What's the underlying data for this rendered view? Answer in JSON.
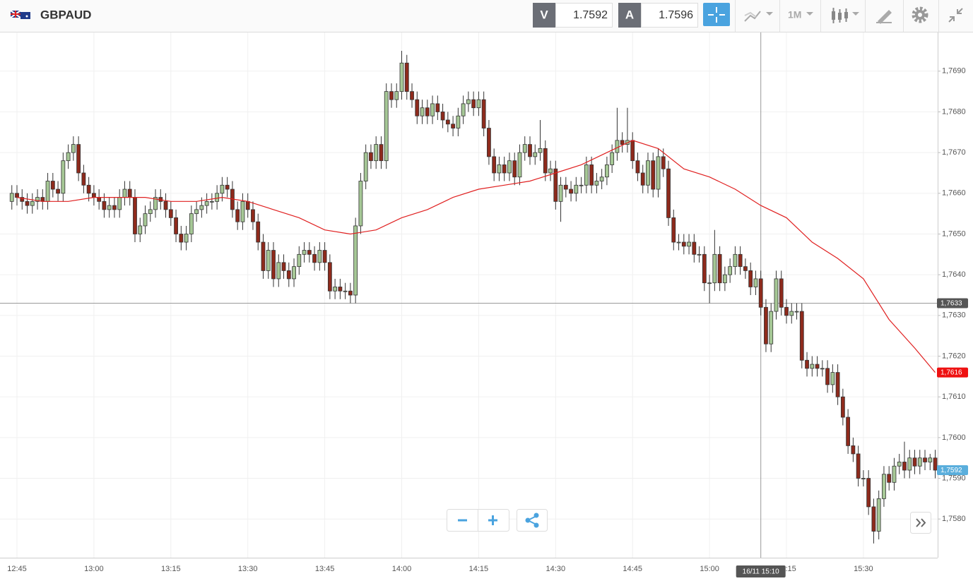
{
  "toolbar": {
    "symbol": "GBPAUD",
    "bid_label": "V",
    "bid": 1.7592,
    "ask_label": "A",
    "ask": 1.7596,
    "timeframe": "1M"
  },
  "chart_data": {
    "type": "candlestick",
    "x": [
      "12:44",
      "12:45",
      "12:46",
      "12:47",
      "12:48",
      "12:49",
      "12:50",
      "12:51",
      "12:52",
      "12:53",
      "12:54",
      "12:55",
      "12:56",
      "12:57",
      "12:58",
      "12:59",
      "13:00",
      "13:01",
      "13:02",
      "13:03",
      "13:04",
      "13:05",
      "13:06",
      "13:07",
      "13:08",
      "13:09",
      "13:10",
      "13:11",
      "13:12",
      "13:13",
      "13:14",
      "13:15",
      "13:16",
      "13:17",
      "13:18",
      "13:19",
      "13:20",
      "13:21",
      "13:22",
      "13:23",
      "13:24",
      "13:25",
      "13:26",
      "13:27",
      "13:28",
      "13:29",
      "13:30",
      "13:31",
      "13:32",
      "13:33",
      "13:34",
      "13:35",
      "13:36",
      "13:37",
      "13:38",
      "13:39",
      "13:40",
      "13:41",
      "13:42",
      "13:43",
      "13:44",
      "13:45",
      "13:46",
      "13:47",
      "13:48",
      "13:49",
      "13:50",
      "13:51",
      "13:52",
      "13:53",
      "13:54",
      "13:55",
      "13:56",
      "13:57",
      "13:58",
      "13:59",
      "14:00",
      "14:01",
      "14:02",
      "14:03",
      "14:04",
      "14:05",
      "14:06",
      "14:07",
      "14:08",
      "14:09",
      "14:10",
      "14:11",
      "14:12",
      "14:13",
      "14:14",
      "14:15",
      "14:16",
      "14:17",
      "14:18",
      "14:19",
      "14:20",
      "14:21",
      "14:22",
      "14:23",
      "14:24",
      "14:25",
      "14:26",
      "14:27",
      "14:28",
      "14:29",
      "14:30",
      "14:31",
      "14:32",
      "14:33",
      "14:34",
      "14:35",
      "14:36",
      "14:37",
      "14:38",
      "14:39",
      "14:40",
      "14:41",
      "14:42",
      "14:43",
      "14:44",
      "14:45",
      "14:46",
      "14:47",
      "14:48",
      "14:49",
      "14:50",
      "14:51",
      "14:52",
      "14:53",
      "14:54",
      "14:55",
      "14:56",
      "14:57",
      "14:58",
      "14:59",
      "15:00",
      "15:01",
      "15:02",
      "15:03",
      "15:04",
      "15:05",
      "15:06",
      "15:07",
      "15:08",
      "15:09",
      "15:10",
      "15:11",
      "15:12",
      "15:13",
      "15:14",
      "15:15",
      "15:16",
      "15:17",
      "15:18",
      "15:19",
      "15:20",
      "15:21",
      "15:22",
      "15:23",
      "15:24",
      "15:25",
      "15:26",
      "15:27",
      "15:28",
      "15:29",
      "15:30",
      "15:31",
      "15:32",
      "15:33",
      "15:34",
      "15:35",
      "15:36",
      "15:37",
      "15:38",
      "15:39",
      "15:40",
      "15:41",
      "15:42",
      "15:43",
      "15:44"
    ],
    "open": [
      1.7658,
      1.766,
      1.7659,
      1.7658,
      1.7657,
      1.7658,
      1.7659,
      1.7658,
      1.7663,
      1.7661,
      1.766,
      1.7668,
      1.767,
      1.7672,
      1.7665,
      1.7662,
      1.766,
      1.7659,
      1.7658,
      1.7656,
      1.7657,
      1.7656,
      1.7659,
      1.7661,
      1.7659,
      1.765,
      1.7652,
      1.7655,
      1.7656,
      1.7659,
      1.7658,
      1.7656,
      1.7654,
      1.765,
      1.7648,
      1.765,
      1.7655,
      1.7656,
      1.7657,
      1.7658,
      1.7658,
      1.766,
      1.7662,
      1.7661,
      1.7656,
      1.7653,
      1.7658,
      1.7656,
      1.7653,
      1.7648,
      1.7641,
      1.7646,
      1.7639,
      1.7643,
      1.7641,
      1.7639,
      1.7642,
      1.7645,
      1.7646,
      1.7645,
      1.7643,
      1.7646,
      1.7643,
      1.7636,
      1.7637,
      1.7636,
      1.7636,
      1.7635,
      1.7652,
      1.7663,
      1.767,
      1.7668,
      1.7672,
      1.7668,
      1.7685,
      1.7683,
      1.7685,
      1.7692,
      1.7685,
      1.7683,
      1.7679,
      1.7681,
      1.7679,
      1.7682,
      1.768,
      1.7678,
      1.7677,
      1.7676,
      1.7679,
      1.7682,
      1.7683,
      1.7681,
      1.7683,
      1.7676,
      1.7669,
      1.7665,
      1.7667,
      1.7665,
      1.7668,
      1.7664,
      1.767,
      1.7672,
      1.7669,
      1.767,
      1.7671,
      1.7665,
      1.7666,
      1.7658,
      1.7662,
      1.7661,
      1.766,
      1.7662,
      1.7662,
      1.7667,
      1.7662,
      1.7663,
      1.7664,
      1.7667,
      1.767,
      1.7673,
      1.7672,
      1.7673,
      1.7668,
      1.7665,
      1.7662,
      1.7668,
      1.7661,
      1.7669,
      1.7666,
      1.7654,
      1.7648,
      1.7648,
      1.7647,
      1.7648,
      1.7645,
      1.7645,
      1.7638,
      1.7638,
      1.7645,
      1.7638,
      1.764,
      1.7642,
      1.7645,
      1.7642,
      1.7641,
      1.7637,
      1.7639,
      1.7632,
      1.7623,
      1.7631,
      1.7639,
      1.7632,
      1.763,
      1.7631,
      1.7631,
      1.7619,
      1.7617,
      1.7618,
      1.7617,
      1.7617,
      1.7613,
      1.7616,
      1.761,
      1.7605,
      1.7598,
      1.7596,
      1.759,
      1.759,
      1.7583,
      1.7577,
      1.7585,
      1.7591,
      1.7589,
      1.7593,
      1.7594,
      1.7592,
      1.7595,
      1.7593,
      1.7595,
      1.7594,
      1.7595
    ],
    "high": [
      1.7662,
      1.7662,
      1.7661,
      1.766,
      1.766,
      1.7661,
      1.7661,
      1.7665,
      1.7665,
      1.7663,
      1.767,
      1.7672,
      1.7674,
      1.7674,
      1.7667,
      1.7664,
      1.7662,
      1.7661,
      1.766,
      1.7659,
      1.7659,
      1.7661,
      1.7663,
      1.7663,
      1.7661,
      1.7654,
      1.7657,
      1.7658,
      1.7661,
      1.7661,
      1.766,
      1.7658,
      1.7656,
      1.7652,
      1.7652,
      1.7657,
      1.7658,
      1.7659,
      1.766,
      1.766,
      1.7662,
      1.7664,
      1.7664,
      1.7663,
      1.7658,
      1.766,
      1.766,
      1.7658,
      1.7655,
      1.765,
      1.7648,
      1.7648,
      1.7645,
      1.7645,
      1.7643,
      1.7644,
      1.7647,
      1.7648,
      1.7648,
      1.7647,
      1.7648,
      1.7648,
      1.7645,
      1.7639,
      1.7639,
      1.7638,
      1.7638,
      1.7654,
      1.7665,
      1.7672,
      1.7672,
      1.7674,
      1.7674,
      1.7687,
      1.7687,
      1.7687,
      1.7695,
      1.7694,
      1.7687,
      1.7685,
      1.7683,
      1.7683,
      1.7684,
      1.7684,
      1.7682,
      1.768,
      1.7679,
      1.7681,
      1.7684,
      1.7685,
      1.7685,
      1.7685,
      1.7685,
      1.7678,
      1.7671,
      1.7669,
      1.7669,
      1.767,
      1.767,
      1.7672,
      1.7674,
      1.7674,
      1.7672,
      1.7678,
      1.7673,
      1.7668,
      1.7668,
      1.7664,
      1.7664,
      1.7663,
      1.7664,
      1.7664,
      1.7669,
      1.7669,
      1.7665,
      1.7666,
      1.7669,
      1.7672,
      1.7681,
      1.7675,
      1.7681,
      1.7675,
      1.767,
      1.7667,
      1.767,
      1.767,
      1.7671,
      1.7671,
      1.7668,
      1.7656,
      1.765,
      1.765,
      1.765,
      1.765,
      1.7647,
      1.7647,
      1.764,
      1.7651,
      1.7647,
      1.7642,
      1.7644,
      1.7647,
      1.7647,
      1.7644,
      1.7643,
      1.7641,
      1.7641,
      1.7634,
      1.7633,
      1.7641,
      1.7641,
      1.7634,
      1.7633,
      1.7633,
      1.7633,
      1.7621,
      1.762,
      1.762,
      1.7619,
      1.7619,
      1.7618,
      1.7618,
      1.7612,
      1.7607,
      1.76,
      1.7598,
      1.7592,
      1.7592,
      1.7585,
      1.7587,
      1.7593,
      1.7593,
      1.7595,
      1.7596,
      1.7599,
      1.7597,
      1.7597,
      1.7597,
      1.7597,
      1.7596,
      1.7597
    ],
    "low": [
      1.7656,
      1.7657,
      1.7656,
      1.7655,
      1.7655,
      1.7656,
      1.7656,
      1.7656,
      1.7659,
      1.7658,
      1.7658,
      1.7666,
      1.7668,
      1.7663,
      1.766,
      1.7658,
      1.7657,
      1.7656,
      1.7654,
      1.7654,
      1.7654,
      1.7654,
      1.7657,
      1.7657,
      1.7648,
      1.7648,
      1.765,
      1.7653,
      1.7654,
      1.7656,
      1.7654,
      1.7652,
      1.7648,
      1.7646,
      1.7646,
      1.7648,
      1.7653,
      1.7654,
      1.7655,
      1.7656,
      1.7656,
      1.7658,
      1.7659,
      1.7654,
      1.7651,
      1.7651,
      1.7654,
      1.7651,
      1.7646,
      1.7639,
      1.7639,
      1.7637,
      1.7637,
      1.7639,
      1.7637,
      1.7637,
      1.764,
      1.7643,
      1.7643,
      1.7641,
      1.7641,
      1.7641,
      1.7634,
      1.7634,
      1.7634,
      1.7634,
      1.7633,
      1.7633,
      1.765,
      1.7661,
      1.7666,
      1.7666,
      1.7666,
      1.7666,
      1.7681,
      1.7681,
      1.7683,
      1.7683,
      1.7681,
      1.7677,
      1.7677,
      1.7677,
      1.7677,
      1.7678,
      1.7676,
      1.7675,
      1.7674,
      1.7674,
      1.7677,
      1.768,
      1.7679,
      1.7679,
      1.7674,
      1.7667,
      1.7663,
      1.7663,
      1.7663,
      1.7663,
      1.7662,
      1.7662,
      1.7668,
      1.7667,
      1.7667,
      1.7668,
      1.7663,
      1.7663,
      1.7656,
      1.7653,
      1.7659,
      1.7658,
      1.7658,
      1.766,
      1.766,
      1.766,
      1.766,
      1.7661,
      1.7662,
      1.7665,
      1.7668,
      1.767,
      1.767,
      1.7666,
      1.7663,
      1.766,
      1.766,
      1.7659,
      1.7659,
      1.7664,
      1.7652,
      1.7646,
      1.7646,
      1.7645,
      1.7645,
      1.7643,
      1.7643,
      1.7636,
      1.7633,
      1.7636,
      1.7636,
      1.7636,
      1.7638,
      1.764,
      1.764,
      1.7639,
      1.7635,
      1.7635,
      1.763,
      1.7621,
      1.7621,
      1.7629,
      1.763,
      1.7628,
      1.7628,
      1.7629,
      1.7617,
      1.7615,
      1.7615,
      1.7615,
      1.7615,
      1.7611,
      1.7611,
      1.7608,
      1.7603,
      1.7596,
      1.7594,
      1.7588,
      1.7588,
      1.7581,
      1.7574,
      1.7575,
      1.7583,
      1.7587,
      1.7587,
      1.7591,
      1.759,
      1.759,
      1.7591,
      1.7591,
      1.7592,
      1.7592,
      1.759
    ],
    "close": [
      1.766,
      1.7659,
      1.7658,
      1.7657,
      1.7658,
      1.7659,
      1.7658,
      1.7663,
      1.7661,
      1.766,
      1.7668,
      1.767,
      1.7672,
      1.7665,
      1.7662,
      1.766,
      1.7659,
      1.7658,
      1.7656,
      1.7657,
      1.7656,
      1.7659,
      1.7661,
      1.7659,
      1.765,
      1.7652,
      1.7655,
      1.7656,
      1.7659,
      1.7658,
      1.7656,
      1.7654,
      1.765,
      1.7648,
      1.765,
      1.7655,
      1.7656,
      1.7657,
      1.7658,
      1.7658,
      1.766,
      1.7662,
      1.7661,
      1.7656,
      1.7653,
      1.7658,
      1.7656,
      1.7653,
      1.7648,
      1.7641,
      1.7646,
      1.7639,
      1.7643,
      1.7641,
      1.7639,
      1.7642,
      1.7645,
      1.7646,
      1.7645,
      1.7643,
      1.7646,
      1.7643,
      1.7636,
      1.7637,
      1.7636,
      1.7636,
      1.7635,
      1.7652,
      1.7663,
      1.767,
      1.7668,
      1.7672,
      1.7668,
      1.7685,
      1.7683,
      1.7685,
      1.7692,
      1.7685,
      1.7683,
      1.7679,
      1.7681,
      1.7679,
      1.7682,
      1.768,
      1.7678,
      1.7677,
      1.7676,
      1.7679,
      1.7682,
      1.7683,
      1.7681,
      1.7683,
      1.7676,
      1.7669,
      1.7665,
      1.7667,
      1.7665,
      1.7668,
      1.7664,
      1.767,
      1.7672,
      1.7669,
      1.767,
      1.7671,
      1.7665,
      1.7666,
      1.7658,
      1.7662,
      1.7661,
      1.766,
      1.7662,
      1.7662,
      1.7667,
      1.7662,
      1.7663,
      1.7664,
      1.7667,
      1.767,
      1.7673,
      1.7672,
      1.7673,
      1.7668,
      1.7665,
      1.7662,
      1.7668,
      1.7661,
      1.7669,
      1.7666,
      1.7654,
      1.7648,
      1.7648,
      1.7647,
      1.7648,
      1.7645,
      1.7645,
      1.7638,
      1.7638,
      1.7645,
      1.7638,
      1.764,
      1.7642,
      1.7645,
      1.7642,
      1.7641,
      1.7637,
      1.7639,
      1.7632,
      1.7623,
      1.7631,
      1.7639,
      1.7632,
      1.763,
      1.7631,
      1.7631,
      1.7619,
      1.7617,
      1.7618,
      1.7617,
      1.7617,
      1.7613,
      1.7616,
      1.761,
      1.7605,
      1.7598,
      1.7596,
      1.759,
      1.759,
      1.7583,
      1.7577,
      1.7585,
      1.7591,
      1.7589,
      1.7593,
      1.7594,
      1.7592,
      1.7595,
      1.7593,
      1.7595,
      1.7594,
      1.7595,
      1.7592
    ],
    "up_color": "#a6c896",
    "down_color": "#8e2a1c",
    "ylim": [
      1.75705,
      1.76995
    ],
    "yticks": [
      {
        "value": 1.758,
        "label": "1,7580"
      },
      {
        "value": 1.759,
        "label": "1,7590"
      },
      {
        "value": 1.76,
        "label": "1,7600"
      },
      {
        "value": 1.761,
        "label": "1,7610"
      },
      {
        "value": 1.762,
        "label": "1,7620"
      },
      {
        "value": 1.763,
        "label": "1,7630"
      },
      {
        "value": 1.764,
        "label": "1,7640"
      },
      {
        "value": 1.765,
        "label": "1,7650"
      },
      {
        "value": 1.766,
        "label": "1,7660"
      },
      {
        "value": 1.767,
        "label": "1,7670"
      },
      {
        "value": 1.768,
        "label": "1,7680"
      },
      {
        "value": 1.769,
        "label": "1,7690"
      }
    ],
    "xticks": [
      "12:45",
      "13:00",
      "13:15",
      "13:30",
      "13:45",
      "14:00",
      "14:15",
      "14:30",
      "14:45",
      "15:00",
      "15:15",
      "15:30"
    ],
    "grid": true,
    "moving_average": {
      "color": "#e02020",
      "x": [
        "12:45",
        "12:50",
        "12:55",
        "13:00",
        "13:05",
        "13:10",
        "13:15",
        "13:20",
        "13:25",
        "13:30",
        "13:35",
        "13:40",
        "13:45",
        "13:50",
        "13:55",
        "14:00",
        "14:05",
        "14:10",
        "14:15",
        "14:20",
        "14:25",
        "14:30",
        "14:35",
        "14:40",
        "14:45",
        "14:50",
        "14:55",
        "15:00",
        "15:05",
        "15:10",
        "15:15",
        "15:20",
        "15:25",
        "15:30",
        "15:35",
        "15:40",
        "15:44"
      ],
      "values": [
        1.7659,
        1.7658,
        1.7658,
        1.7659,
        1.7659,
        1.7659,
        1.7658,
        1.7658,
        1.7659,
        1.7658,
        1.7656,
        1.7654,
        1.7651,
        1.765,
        1.7651,
        1.7654,
        1.7656,
        1.7659,
        1.7661,
        1.7662,
        1.7663,
        1.7665,
        1.7667,
        1.767,
        1.7673,
        1.7671,
        1.7666,
        1.7664,
        1.7661,
        1.7657,
        1.7654,
        1.7648,
        1.7644,
        1.7639,
        1.7629,
        1.7622,
        1.7616
      ]
    },
    "crosshair": {
      "x": "15:10",
      "x_label": "16/11 15:10",
      "y": {
        "value": 1.7633,
        "label": "1,7633"
      }
    },
    "markers": [
      {
        "value": 1.7616,
        "label": "1,7616",
        "color": "#ee1111"
      },
      {
        "value": 1.7592,
        "label": "1,7592",
        "color": "#5aaedc"
      }
    ]
  }
}
